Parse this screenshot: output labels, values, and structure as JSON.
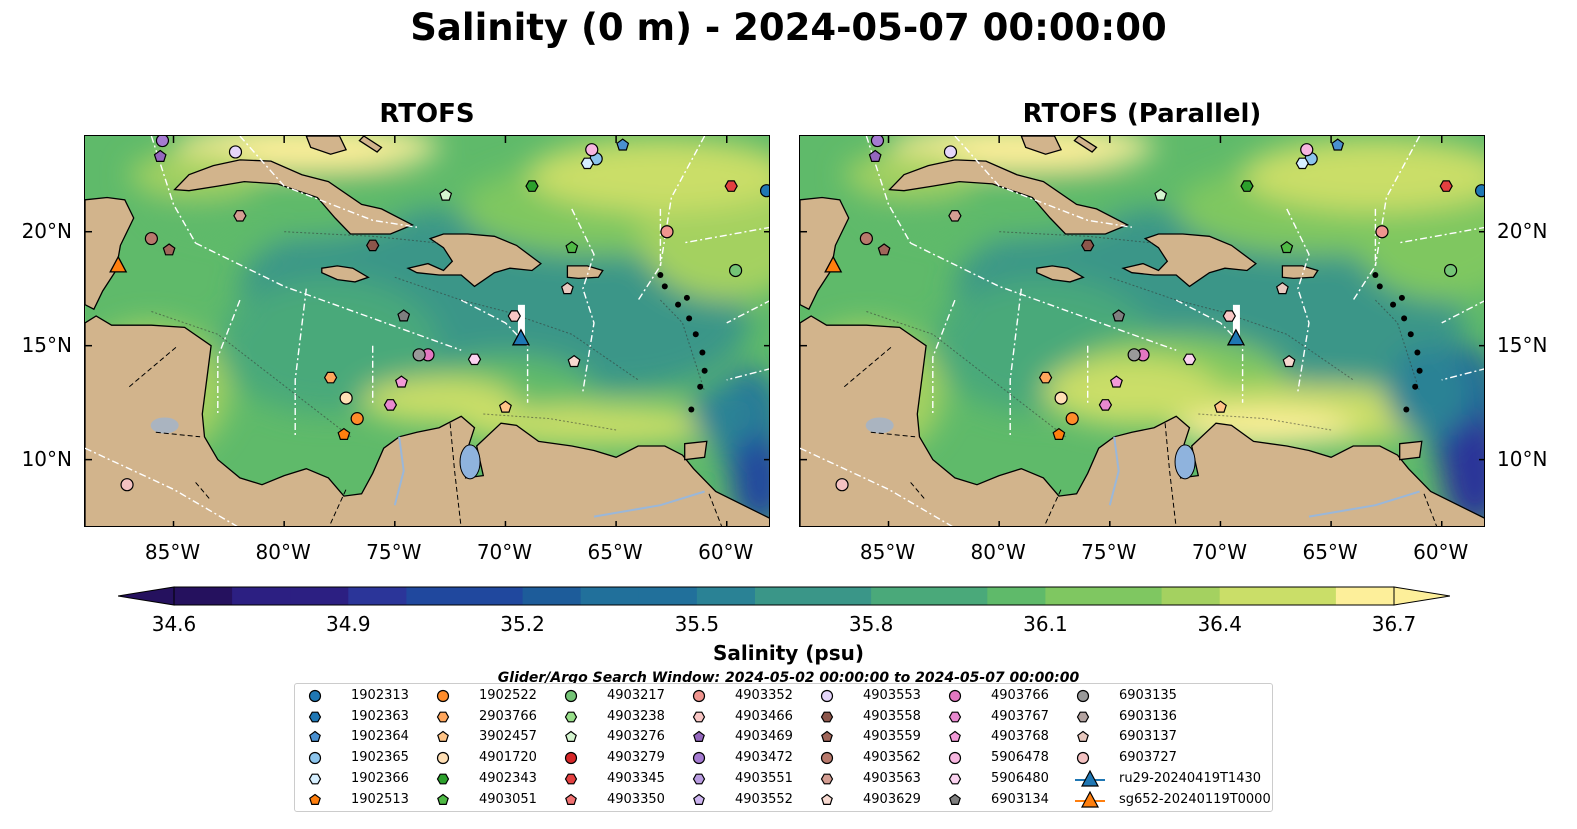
{
  "suptitle": "Salinity (0 m) - 2024-05-07 00:00:00",
  "panels": [
    {
      "title": "RTOFS"
    },
    {
      "title": "RTOFS (Parallel)"
    }
  ],
  "chart_data": {
    "type": "heatmap",
    "variable": "Salinity (0 m)",
    "extent_lon": [
      -89,
      -58
    ],
    "extent_lat": [
      7,
      24.2
    ],
    "lon_ticks": [
      -85,
      -80,
      -75,
      -70,
      -65,
      -60
    ],
    "lon_tick_labels": [
      "85°W",
      "80°W",
      "75°W",
      "70°W",
      "65°W",
      "60°W"
    ],
    "lat_ticks": [
      10,
      15,
      20
    ],
    "lat_tick_labels": [
      "10°N",
      "15°N",
      "20°N"
    ],
    "colorbar": {
      "label": "Salinity (psu)",
      "range": [
        34.6,
        36.7
      ],
      "ticks": [
        34.6,
        34.9,
        35.2,
        35.5,
        35.8,
        36.1,
        36.4,
        36.7
      ],
      "tick_labels": [
        "34.6",
        "34.9",
        "35.2",
        "35.5",
        "35.8",
        "36.1",
        "36.4",
        "36.7"
      ],
      "colors": [
        "#25115e",
        "#2c1f82",
        "#2b3599",
        "#20489e",
        "#1d5c9a",
        "#21709b",
        "#2a8295",
        "#3a9688",
        "#4aa97a",
        "#5fba6a",
        "#7fc761",
        "#a4d160",
        "#cade68",
        "#fdef9a"
      ],
      "extend": "both"
    },
    "glider_search_window": "Glider/Argo Search Window: 2024-05-02 00:00:00 to 2024-05-07 00:00:00",
    "land_color": "#d2b48c",
    "gliders": [
      {
        "name": "ru29-20240419T1430",
        "lon": -69.3,
        "lat": 15.3,
        "color": "#1f77b4"
      },
      {
        "name": "sg652-20240119T0000",
        "lon": -87.5,
        "lat": 18.5,
        "color": "#ff7f0e"
      }
    ],
    "argo_floats": [
      {
        "name": "1902313",
        "lon": -58.2,
        "lat": 21.8,
        "color": "#1f77b4",
        "marker": "o"
      },
      {
        "name": "1902363",
        "color": "#1f77b4",
        "marker": "h"
      },
      {
        "name": "1902364",
        "lon": -64.7,
        "lat": 23.8,
        "color": "#4a90d0",
        "marker": "p"
      },
      {
        "name": "1902365",
        "lon": -65.9,
        "lat": 23.2,
        "color": "#8cc4ec",
        "marker": "o"
      },
      {
        "name": "1902366",
        "lon": -66.3,
        "lat": 23.0,
        "color": "#d6efff",
        "marker": "h"
      },
      {
        "name": "1902513",
        "lon": -77.3,
        "lat": 11.1,
        "color": "#ff7f0e",
        "marker": "p"
      },
      {
        "name": "1902522",
        "lon": -76.7,
        "lat": 11.8,
        "color": "#ff8c2a",
        "marker": "o"
      },
      {
        "name": "2903766",
        "lon": -77.9,
        "lat": 13.6,
        "color": "#ffa65c",
        "marker": "h"
      },
      {
        "name": "3902457",
        "lon": -70.0,
        "lat": 12.3,
        "color": "#ffc487",
        "marker": "p"
      },
      {
        "name": "4901720",
        "lon": -77.2,
        "lat": 12.7,
        "color": "#ffdfb5",
        "marker": "o"
      },
      {
        "name": "4902343",
        "lon": -68.8,
        "lat": 22.0,
        "color": "#2ca02c",
        "marker": "h"
      },
      {
        "name": "4903051",
        "lon": -67.0,
        "lat": 19.3,
        "color": "#4fba45",
        "marker": "p"
      },
      {
        "name": "4903217",
        "lon": -59.6,
        "lat": 18.3,
        "color": "#74c476",
        "marker": "o"
      },
      {
        "name": "4903238",
        "color": "#98df8a",
        "marker": "h"
      },
      {
        "name": "4903276",
        "lon": -72.7,
        "lat": 21.6,
        "color": "#d4f5cf",
        "marker": "p"
      },
      {
        "name": "4903279",
        "color": "#d62728",
        "marker": "o"
      },
      {
        "name": "4903345",
        "lon": -59.8,
        "lat": 22.0,
        "color": "#e34040",
        "marker": "h"
      },
      {
        "name": "4903350",
        "color": "#f07272",
        "marker": "p"
      },
      {
        "name": "4903352",
        "lon": -62.7,
        "lat": 20.0,
        "color": "#f0958f",
        "marker": "o"
      },
      {
        "name": "4903466",
        "lon": -69.6,
        "lat": 16.3,
        "color": "#f8c6c4",
        "marker": "h"
      },
      {
        "name": "4903469",
        "lon": -85.6,
        "lat": 23.3,
        "color": "#9467bd",
        "marker": "p"
      },
      {
        "name": "4903472",
        "lon": -85.5,
        "lat": 24.0,
        "color": "#a57bd1",
        "marker": "o"
      },
      {
        "name": "4903551",
        "color": "#b89be0",
        "marker": "h"
      },
      {
        "name": "4903552",
        "color": "#cdb5f0",
        "marker": "p"
      },
      {
        "name": "4903553",
        "lon": -82.2,
        "lat": 23.5,
        "color": "#e5d6fa",
        "marker": "o"
      },
      {
        "name": "4903558",
        "lon": -76.0,
        "lat": 19.4,
        "color": "#8c564b",
        "marker": "h"
      },
      {
        "name": "4903559",
        "lon": -85.2,
        "lat": 19.2,
        "color": "#a0665a",
        "marker": "p"
      },
      {
        "name": "4903562",
        "lon": -86.0,
        "lat": 19.7,
        "color": "#b8796c",
        "marker": "o"
      },
      {
        "name": "4903563",
        "lon": -82.0,
        "lat": 20.7,
        "color": "#d49d92",
        "marker": "h"
      },
      {
        "name": "4903629",
        "lon": -66.9,
        "lat": 14.3,
        "color": "#f7d9d0",
        "marker": "p"
      },
      {
        "name": "4903766",
        "lon": -73.5,
        "lat": 14.6,
        "color": "#e377c2",
        "marker": "o"
      },
      {
        "name": "4903767",
        "lon": -75.2,
        "lat": 12.4,
        "color": "#e889cf",
        "marker": "h"
      },
      {
        "name": "4903768",
        "lon": -74.7,
        "lat": 13.4,
        "color": "#f29ad8",
        "marker": "p"
      },
      {
        "name": "5906478",
        "lon": -66.1,
        "lat": 23.6,
        "color": "#f7b6e0",
        "marker": "o"
      },
      {
        "name": "5906480",
        "lon": -71.4,
        "lat": 14.4,
        "color": "#fbd3f0",
        "marker": "h"
      },
      {
        "name": "6903134",
        "lon": -74.6,
        "lat": 16.3,
        "color": "#7f7f7f",
        "marker": "p"
      },
      {
        "name": "6903135",
        "lon": -73.9,
        "lat": 14.6,
        "color": "#999999",
        "marker": "o"
      },
      {
        "name": "6903136",
        "color": "#b3a3a0",
        "marker": "h"
      },
      {
        "name": "6903137",
        "lon": -67.2,
        "lat": 17.5,
        "color": "#e8c9bf",
        "marker": "p"
      },
      {
        "name": "6903727",
        "lon": -87.1,
        "lat": 8.9,
        "color": "#f4c2c2",
        "marker": "o"
      }
    ]
  }
}
